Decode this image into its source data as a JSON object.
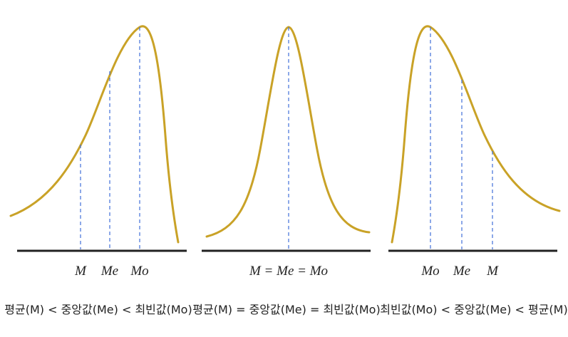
{
  "colors": {
    "curve": "#c9a227",
    "guide": "#3f6fd8",
    "baseline": "#222222",
    "text": "#222222"
  },
  "panels": [
    {
      "shape": "negatively-skewed",
      "marks": [
        "M",
        "Me",
        "Mo"
      ],
      "caption": "평균(M) < 중앙값(Me) < 최빈값(Mo)"
    },
    {
      "shape": "symmetric",
      "marks": [
        "M = Me = Mo"
      ],
      "caption": "평균(M) = 중앙값(Me) = 최빈값(Mo)"
    },
    {
      "shape": "positively-skewed",
      "marks": [
        "Mo",
        "Me",
        "M"
      ],
      "caption": "최빈값(Mo) < 중앙값(Me) < 평균(M)"
    }
  ]
}
